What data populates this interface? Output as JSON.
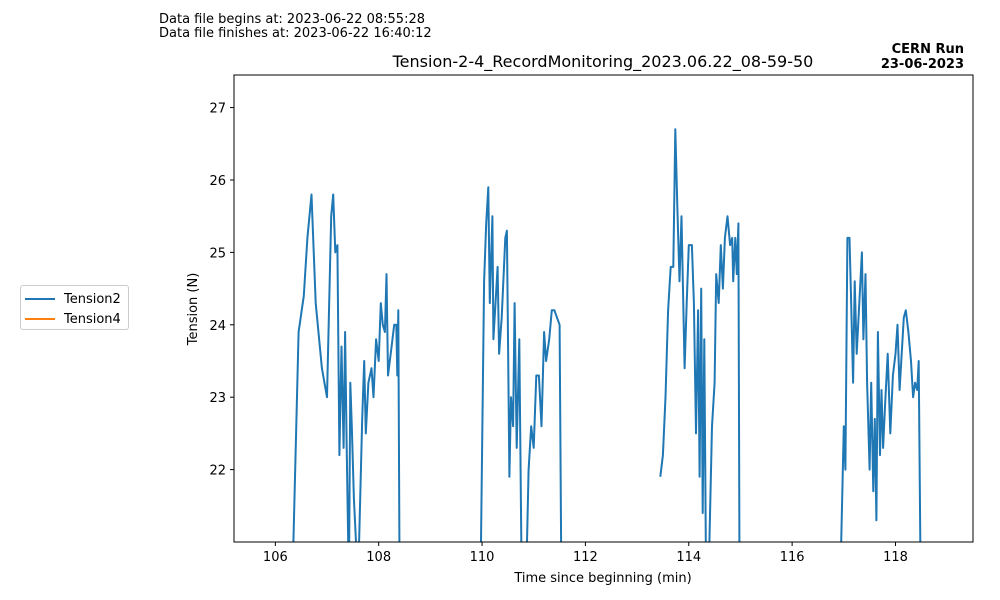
{
  "header": {
    "begin_text": "Data file begins at: 2023-06-22 08:55:28",
    "finish_text": "Data file finishes at: 2023-06-22 16:40:12",
    "run_title": "CERN Run",
    "run_date": "23-06-2023"
  },
  "chart_data": {
    "type": "line",
    "title": "Tension-2-4_RecordMonitoring_2023.06.22_08-59-50",
    "xlabel": "Time since beginning (min)",
    "ylabel": "Tension (N)",
    "xlim": [
      105.2,
      119.5
    ],
    "ylim": [
      21.0,
      27.45
    ],
    "xticks": [
      106,
      108,
      110,
      112,
      114,
      116,
      118
    ],
    "yticks": [
      22,
      23,
      24,
      25,
      26,
      27
    ],
    "legend_position": "outside-left",
    "series": [
      {
        "name": "Tension2",
        "color": "#1f77b4",
        "segments": [
          [
            [
              106.35,
              21.0
            ],
            [
              106.45,
              23.9
            ],
            [
              106.55,
              24.4
            ],
            [
              106.62,
              25.2
            ],
            [
              106.7,
              25.8
            ],
            [
              106.78,
              24.3
            ],
            [
              106.9,
              23.4
            ],
            [
              107.0,
              23.0
            ],
            [
              107.08,
              25.5
            ],
            [
              107.12,
              25.8
            ],
            [
              107.16,
              25.0
            ],
            [
              107.2,
              25.1
            ],
            [
              107.24,
              22.2
            ],
            [
              107.28,
              23.7
            ],
            [
              107.32,
              22.3
            ],
            [
              107.35,
              23.9
            ],
            [
              107.38,
              22.3
            ],
            [
              107.41,
              21.0
            ]
          ],
          [
            [
              107.43,
              21.0
            ],
            [
              107.45,
              23.2
            ],
            [
              107.48,
              22.6
            ],
            [
              107.52,
              21.6
            ],
            [
              107.56,
              21.0
            ]
          ],
          [
            [
              107.62,
              21.0
            ],
            [
              107.68,
              22.7
            ],
            [
              107.72,
              23.5
            ],
            [
              107.75,
              22.5
            ],
            [
              107.8,
              23.2
            ],
            [
              107.86,
              23.4
            ],
            [
              107.9,
              23.0
            ],
            [
              107.95,
              23.8
            ],
            [
              108.0,
              23.5
            ],
            [
              108.04,
              24.3
            ],
            [
              108.08,
              24.0
            ],
            [
              108.12,
              23.9
            ],
            [
              108.15,
              24.7
            ],
            [
              108.18,
              23.3
            ],
            [
              108.25,
              23.7
            ],
            [
              108.3,
              24.0
            ],
            [
              108.34,
              24.0
            ],
            [
              108.36,
              23.3
            ],
            [
              108.38,
              24.2
            ],
            [
              108.4,
              21.0
            ]
          ],
          [
            [
              109.98,
              21.0
            ],
            [
              110.04,
              24.6
            ],
            [
              110.08,
              25.4
            ],
            [
              110.12,
              25.9
            ],
            [
              110.15,
              24.3
            ],
            [
              110.2,
              25.5
            ],
            [
              110.22,
              23.8
            ],
            [
              110.3,
              24.8
            ],
            [
              110.33,
              23.6
            ],
            [
              110.38,
              24.1
            ],
            [
              110.45,
              25.2
            ],
            [
              110.48,
              25.3
            ],
            [
              110.53,
              21.9
            ],
            [
              110.56,
              23.0
            ],
            [
              110.6,
              22.6
            ],
            [
              110.63,
              24.3
            ],
            [
              110.67,
              22.3
            ],
            [
              110.72,
              23.8
            ],
            [
              110.76,
              21.0
            ]
          ],
          [
            [
              110.87,
              21.0
            ],
            [
              110.9,
              22.0
            ],
            [
              110.95,
              22.6
            ],
            [
              111.0,
              22.3
            ],
            [
              111.05,
              23.3
            ],
            [
              111.1,
              23.3
            ],
            [
              111.15,
              22.6
            ],
            [
              111.2,
              23.9
            ],
            [
              111.24,
              23.5
            ],
            [
              111.3,
              23.8
            ],
            [
              111.35,
              24.2
            ],
            [
              111.4,
              24.2
            ],
            [
              111.45,
              24.1
            ],
            [
              111.5,
              24.0
            ],
            [
              111.53,
              21.0
            ]
          ],
          [
            [
              113.45,
              21.9
            ],
            [
              113.5,
              22.2
            ],
            [
              113.55,
              23.0
            ],
            [
              113.6,
              24.2
            ],
            [
              113.65,
              24.8
            ],
            [
              113.7,
              24.8
            ],
            [
              113.74,
              26.7
            ],
            [
              113.78,
              25.6
            ],
            [
              113.82,
              24.6
            ],
            [
              113.86,
              25.5
            ],
            [
              113.92,
              23.4
            ],
            [
              113.96,
              24.3
            ],
            [
              114.0,
              25.1
            ],
            [
              114.06,
              25.1
            ],
            [
              114.1,
              24.3
            ],
            [
              114.14,
              22.5
            ],
            [
              114.18,
              24.2
            ],
            [
              114.21,
              21.9
            ],
            [
              114.24,
              24.5
            ],
            [
              114.27,
              21.4
            ],
            [
              114.3,
              23.8
            ],
            [
              114.33,
              21.0
            ]
          ],
          [
            [
              114.4,
              21.0
            ],
            [
              114.45,
              22.6
            ],
            [
              114.5,
              23.2
            ],
            [
              114.53,
              24.7
            ],
            [
              114.58,
              24.3
            ],
            [
              114.62,
              25.1
            ],
            [
              114.66,
              24.5
            ],
            [
              114.7,
              25.2
            ],
            [
              114.75,
              25.5
            ],
            [
              114.8,
              25.1
            ],
            [
              114.84,
              25.2
            ],
            [
              114.86,
              24.6
            ],
            [
              114.9,
              25.2
            ],
            [
              114.93,
              24.7
            ],
            [
              114.96,
              25.4
            ],
            [
              114.98,
              21.0
            ]
          ],
          [
            [
              116.95,
              21.0
            ],
            [
              117.0,
              22.6
            ],
            [
              117.03,
              22.0
            ],
            [
              117.07,
              25.2
            ],
            [
              117.11,
              25.2
            ],
            [
              117.14,
              24.4
            ],
            [
              117.18,
              23.2
            ],
            [
              117.21,
              24.6
            ],
            [
              117.25,
              23.6
            ],
            [
              117.3,
              24.3
            ],
            [
              117.35,
              25.0
            ],
            [
              117.38,
              23.8
            ],
            [
              117.42,
              24.7
            ],
            [
              117.45,
              23.2
            ],
            [
              117.5,
              22.0
            ],
            [
              117.53,
              23.2
            ],
            [
              117.57,
              21.7
            ],
            [
              117.6,
              22.7
            ],
            [
              117.63,
              21.3
            ],
            [
              117.66,
              23.9
            ],
            [
              117.7,
              22.2
            ],
            [
              117.73,
              23.1
            ],
            [
              117.76,
              22.3
            ],
            [
              117.8,
              22.9
            ],
            [
              117.85,
              23.6
            ],
            [
              117.9,
              22.5
            ],
            [
              117.95,
              23.3
            ],
            [
              118.0,
              23.6
            ],
            [
              118.04,
              24.0
            ],
            [
              118.08,
              23.1
            ],
            [
              118.12,
              23.6
            ],
            [
              118.16,
              24.1
            ],
            [
              118.2,
              24.2
            ],
            [
              118.25,
              23.9
            ],
            [
              118.3,
              23.5
            ],
            [
              118.34,
              23.0
            ],
            [
              118.38,
              23.2
            ],
            [
              118.42,
              23.1
            ],
            [
              118.45,
              23.5
            ],
            [
              118.48,
              21.0
            ]
          ]
        ]
      },
      {
        "name": "Tension4",
        "color": "#ff7f0e",
        "segments": []
      }
    ]
  }
}
